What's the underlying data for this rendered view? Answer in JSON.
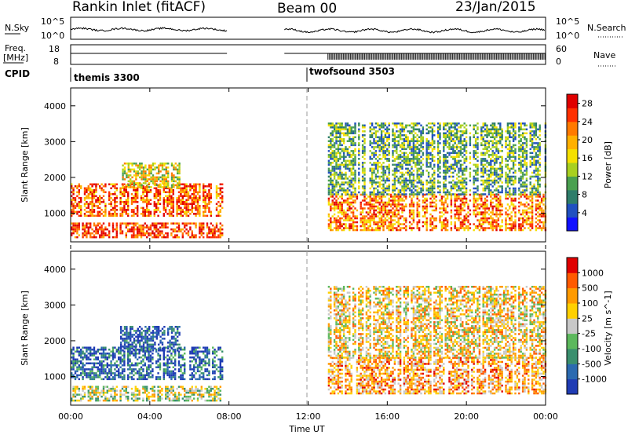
{
  "header": {
    "station": "Rankin Inlet (fitACF)",
    "beam": "Beam 00",
    "date": "23/Jan/2015"
  },
  "sky_panel": {
    "left_label": "N.Sky",
    "left_ticks": [
      "10^5",
      "10^0"
    ],
    "right_ticks": [
      "10^5",
      "10^0"
    ],
    "right_label": "N.Search"
  },
  "freq_panel": {
    "left_label_1": "Freq.",
    "left_label_2": "[MHz]",
    "left_ticks": [
      "18",
      "8"
    ],
    "right_ticks": [
      "60",
      "0"
    ],
    "right_label": "Nave"
  },
  "cpid": {
    "label": "CPID",
    "modes": [
      {
        "name": "themis 3300",
        "start_hour": 0
      },
      {
        "name": "twofsound 3503",
        "start_hour": 12
      }
    ]
  },
  "x_axis": {
    "label": "Time UT",
    "ticks": [
      "00:00",
      "04:00",
      "08:00",
      "12:00",
      "16:00",
      "20:00",
      "00:00"
    ]
  },
  "chart_data": [
    {
      "type": "heatmap",
      "title": "",
      "xlabel": "Time UT",
      "ylabel": "Slant Range [km]",
      "xlim": [
        0,
        24
      ],
      "ylim": [
        200,
        4500
      ],
      "yticks": [
        "1000",
        "2000",
        "3000",
        "4000"
      ],
      "colorbar": {
        "label": "Power [dB]",
        "ticks": [
          "4",
          "8",
          "12",
          "16",
          "20",
          "24",
          "28"
        ],
        "range": [
          0,
          30
        ],
        "colors": [
          "#1010ff",
          "#2050c0",
          "#2e7d6a",
          "#4aa050",
          "#a8d020",
          "#f5e000",
          "#ffb000",
          "#ff7a00",
          "#ff3000",
          "#e00000"
        ]
      },
      "regions": [
        {
          "t0": 0.0,
          "t1": 7.7,
          "r0": 300,
          "r1": 700,
          "level": 0.85
        },
        {
          "t0": 0.0,
          "t1": 7.7,
          "r0": 900,
          "r1": 1800,
          "level": 0.8
        },
        {
          "t0": 2.5,
          "t1": 5.5,
          "r0": 1700,
          "r1": 2400,
          "level": 0.55
        },
        {
          "t0": 13.0,
          "t1": 24.0,
          "r0": 500,
          "r1": 1500,
          "level": 0.75
        },
        {
          "t0": 13.0,
          "t1": 24.0,
          "r0": 1500,
          "r1": 3500,
          "level": 0.35
        }
      ]
    },
    {
      "type": "heatmap",
      "title": "",
      "xlabel": "Time UT",
      "ylabel": "Slant Range [km]",
      "xlim": [
        0,
        24
      ],
      "ylim": [
        200,
        4500
      ],
      "yticks": [
        "1000",
        "2000",
        "3000",
        "4000"
      ],
      "colorbar": {
        "label": "Velocity [m s^-1]",
        "ticks": [
          "1000",
          "500",
          "100",
          "25",
          "-25",
          "-100",
          "-500",
          "-1000"
        ],
        "colors": [
          "#203cb4",
          "#2b6ab0",
          "#3a8f6e",
          "#5cb85c",
          "#c8c8c8",
          "#ffd000",
          "#ff9a00",
          "#ff5a00",
          "#e00000"
        ]
      },
      "regions": [
        {
          "t0": 0.0,
          "t1": 7.7,
          "r0": 300,
          "r1": 700,
          "level": 0.5
        },
        {
          "t0": 0.0,
          "t1": 7.7,
          "r0": 900,
          "r1": 1800,
          "level": 0.15
        },
        {
          "t0": 2.5,
          "t1": 5.5,
          "r0": 1700,
          "r1": 2400,
          "level": 0.1
        },
        {
          "t0": 13.0,
          "t1": 24.0,
          "r0": 500,
          "r1": 1500,
          "level": 0.7
        },
        {
          "t0": 13.0,
          "t1": 24.0,
          "r0": 1500,
          "r1": 3500,
          "level": 0.6
        }
      ]
    }
  ]
}
